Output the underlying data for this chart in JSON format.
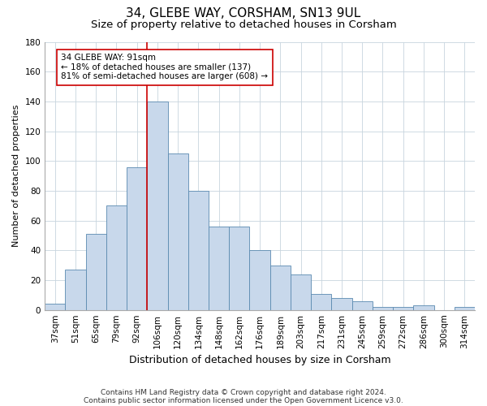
{
  "title1": "34, GLEBE WAY, CORSHAM, SN13 9UL",
  "title2": "Size of property relative to detached houses in Corsham",
  "xlabel": "Distribution of detached houses by size in Corsham",
  "ylabel": "Number of detached properties",
  "categories": [
    "37sqm",
    "51sqm",
    "65sqm",
    "79sqm",
    "92sqm",
    "106sqm",
    "120sqm",
    "134sqm",
    "148sqm",
    "162sqm",
    "176sqm",
    "189sqm",
    "203sqm",
    "217sqm",
    "231sqm",
    "245sqm",
    "259sqm",
    "272sqm",
    "286sqm",
    "300sqm",
    "314sqm"
  ],
  "values": [
    4,
    27,
    51,
    70,
    96,
    140,
    105,
    80,
    56,
    56,
    40,
    30,
    24,
    11,
    8,
    6,
    2,
    2,
    3,
    0,
    2
  ],
  "bar_color": "#c8d8eb",
  "bar_edge_color": "#5a8ab0",
  "vline_index": 4.5,
  "ylim": [
    0,
    180
  ],
  "yticks": [
    0,
    20,
    40,
    60,
    80,
    100,
    120,
    140,
    160,
    180
  ],
  "annotation_text": "34 GLEBE WAY: 91sqm\n← 18% of detached houses are smaller (137)\n81% of semi-detached houses are larger (608) →",
  "annotation_box_color": "#ffffff",
  "annotation_box_edge": "#cc0000",
  "vline_color": "#cc0000",
  "footnote1": "Contains HM Land Registry data © Crown copyright and database right 2024.",
  "footnote2": "Contains public sector information licensed under the Open Government Licence v3.0.",
  "background_color": "#ffffff",
  "grid_color": "#c8d4de",
  "title1_fontsize": 11,
  "title2_fontsize": 9.5,
  "xlabel_fontsize": 9,
  "ylabel_fontsize": 8,
  "tick_fontsize": 7.5,
  "annot_fontsize": 7.5,
  "footnote_fontsize": 6.5
}
